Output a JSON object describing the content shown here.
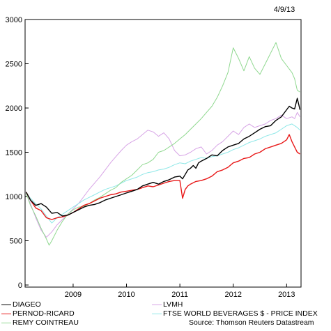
{
  "date_stamp": "4/9/13",
  "source": "Source: Thomson Reuters Datastream",
  "chart_data": {
    "type": "line",
    "ylim": [
      0,
      3000
    ],
    "xlim": [
      2008.1,
      2013.27
    ],
    "y_ticks": [
      0,
      500,
      1000,
      1500,
      2000,
      2500,
      3000
    ],
    "x_ticks": [
      {
        "label": "2009",
        "x": 2009.0
      },
      {
        "label": "2010",
        "x": 2010.0
      },
      {
        "label": "2011",
        "x": 2011.0
      },
      {
        "label": "2012",
        "x": 2012.0
      },
      {
        "label": "2013",
        "x": 2013.0
      }
    ],
    "series": [
      {
        "name": "DIAGEO",
        "color": "#000000",
        "width": 1.4,
        "points": [
          [
            2008.12,
            1050
          ],
          [
            2008.2,
            960
          ],
          [
            2008.3,
            900
          ],
          [
            2008.4,
            920
          ],
          [
            2008.5,
            880
          ],
          [
            2008.6,
            810
          ],
          [
            2008.7,
            820
          ],
          [
            2008.8,
            780
          ],
          [
            2008.9,
            790
          ],
          [
            2009.0,
            820
          ],
          [
            2009.1,
            850
          ],
          [
            2009.2,
            880
          ],
          [
            2009.3,
            900
          ],
          [
            2009.4,
            910
          ],
          [
            2009.5,
            930
          ],
          [
            2009.6,
            960
          ],
          [
            2009.7,
            980
          ],
          [
            2009.8,
            1000
          ],
          [
            2009.9,
            1020
          ],
          [
            2010.0,
            1040
          ],
          [
            2010.1,
            1060
          ],
          [
            2010.2,
            1080
          ],
          [
            2010.3,
            1120
          ],
          [
            2010.4,
            1140
          ],
          [
            2010.5,
            1160
          ],
          [
            2010.6,
            1140
          ],
          [
            2010.7,
            1170
          ],
          [
            2010.8,
            1190
          ],
          [
            2010.9,
            1220
          ],
          [
            2011.0,
            1230
          ],
          [
            2011.05,
            1200
          ],
          [
            2011.1,
            1250
          ],
          [
            2011.15,
            1300
          ],
          [
            2011.2,
            1320
          ],
          [
            2011.25,
            1350
          ],
          [
            2011.3,
            1320
          ],
          [
            2011.35,
            1380
          ],
          [
            2011.4,
            1400
          ],
          [
            2011.5,
            1430
          ],
          [
            2011.6,
            1470
          ],
          [
            2011.7,
            1460
          ],
          [
            2011.8,
            1520
          ],
          [
            2011.9,
            1560
          ],
          [
            2012.0,
            1580
          ],
          [
            2012.1,
            1600
          ],
          [
            2012.2,
            1650
          ],
          [
            2012.3,
            1680
          ],
          [
            2012.4,
            1720
          ],
          [
            2012.5,
            1760
          ],
          [
            2012.6,
            1790
          ],
          [
            2012.7,
            1800
          ],
          [
            2012.8,
            1860
          ],
          [
            2012.9,
            1900
          ],
          [
            2013.0,
            1980
          ],
          [
            2013.05,
            2020
          ],
          [
            2013.1,
            2000
          ],
          [
            2013.15,
            1990
          ],
          [
            2013.2,
            2110
          ],
          [
            2013.25,
            1980
          ]
        ]
      },
      {
        "name": "PERNOD-RICARD",
        "color": "#e81818",
        "width": 1.4,
        "points": [
          [
            2008.12,
            1050
          ],
          [
            2008.2,
            960
          ],
          [
            2008.3,
            870
          ],
          [
            2008.4,
            840
          ],
          [
            2008.5,
            760
          ],
          [
            2008.6,
            740
          ],
          [
            2008.7,
            760
          ],
          [
            2008.8,
            770
          ],
          [
            2008.9,
            790
          ],
          [
            2009.0,
            820
          ],
          [
            2009.1,
            860
          ],
          [
            2009.2,
            900
          ],
          [
            2009.3,
            920
          ],
          [
            2009.4,
            950
          ],
          [
            2009.5,
            980
          ],
          [
            2009.6,
            1000
          ],
          [
            2009.7,
            1020
          ],
          [
            2009.8,
            1030
          ],
          [
            2009.9,
            1050
          ],
          [
            2010.0,
            1060
          ],
          [
            2010.1,
            1070
          ],
          [
            2010.2,
            1080
          ],
          [
            2010.3,
            1100
          ],
          [
            2010.4,
            1120
          ],
          [
            2010.5,
            1110
          ],
          [
            2010.6,
            1130
          ],
          [
            2010.7,
            1150
          ],
          [
            2010.8,
            1170
          ],
          [
            2010.9,
            1180
          ],
          [
            2011.0,
            1180
          ],
          [
            2011.05,
            980
          ],
          [
            2011.1,
            1080
          ],
          [
            2011.15,
            1120
          ],
          [
            2011.2,
            1140
          ],
          [
            2011.3,
            1170
          ],
          [
            2011.4,
            1180
          ],
          [
            2011.5,
            1200
          ],
          [
            2011.6,
            1230
          ],
          [
            2011.7,
            1280
          ],
          [
            2011.8,
            1300
          ],
          [
            2011.9,
            1330
          ],
          [
            2012.0,
            1380
          ],
          [
            2012.1,
            1400
          ],
          [
            2012.2,
            1430
          ],
          [
            2012.3,
            1440
          ],
          [
            2012.4,
            1480
          ],
          [
            2012.5,
            1500
          ],
          [
            2012.6,
            1540
          ],
          [
            2012.7,
            1560
          ],
          [
            2012.8,
            1580
          ],
          [
            2012.9,
            1600
          ],
          [
            2013.0,
            1640
          ],
          [
            2013.05,
            1700
          ],
          [
            2013.1,
            1620
          ],
          [
            2013.15,
            1560
          ],
          [
            2013.2,
            1500
          ],
          [
            2013.25,
            1480
          ]
        ]
      },
      {
        "name": "REMY COINTREAU",
        "color": "#8fd88f",
        "width": 1.0,
        "points": [
          [
            2008.12,
            1040
          ],
          [
            2008.2,
            900
          ],
          [
            2008.3,
            780
          ],
          [
            2008.4,
            640
          ],
          [
            2008.5,
            520
          ],
          [
            2008.55,
            450
          ],
          [
            2008.6,
            500
          ],
          [
            2008.7,
            620
          ],
          [
            2008.8,
            720
          ],
          [
            2008.9,
            800
          ],
          [
            2009.0,
            850
          ],
          [
            2009.1,
            880
          ],
          [
            2009.2,
            890
          ],
          [
            2009.3,
            920
          ],
          [
            2009.4,
            960
          ],
          [
            2009.5,
            990
          ],
          [
            2009.6,
            1030
          ],
          [
            2009.7,
            1070
          ],
          [
            2009.8,
            1100
          ],
          [
            2009.9,
            1160
          ],
          [
            2010.0,
            1200
          ],
          [
            2010.1,
            1240
          ],
          [
            2010.2,
            1300
          ],
          [
            2010.3,
            1360
          ],
          [
            2010.4,
            1380
          ],
          [
            2010.5,
            1420
          ],
          [
            2010.6,
            1500
          ],
          [
            2010.7,
            1520
          ],
          [
            2010.8,
            1560
          ],
          [
            2010.9,
            1600
          ],
          [
            2011.0,
            1650
          ],
          [
            2011.1,
            1700
          ],
          [
            2011.2,
            1760
          ],
          [
            2011.3,
            1820
          ],
          [
            2011.4,
            1880
          ],
          [
            2011.5,
            1950
          ],
          [
            2011.6,
            2020
          ],
          [
            2011.7,
            2120
          ],
          [
            2011.8,
            2250
          ],
          [
            2011.9,
            2400
          ],
          [
            2012.0,
            2680
          ],
          [
            2012.1,
            2560
          ],
          [
            2012.2,
            2420
          ],
          [
            2012.3,
            2580
          ],
          [
            2012.4,
            2450
          ],
          [
            2012.5,
            2380
          ],
          [
            2012.6,
            2500
          ],
          [
            2012.7,
            2620
          ],
          [
            2012.8,
            2740
          ],
          [
            2012.9,
            2560
          ],
          [
            2013.0,
            2480
          ],
          [
            2013.1,
            2400
          ],
          [
            2013.15,
            2330
          ],
          [
            2013.2,
            2200
          ],
          [
            2013.25,
            2180
          ]
        ]
      },
      {
        "name": "LVMH",
        "color": "#d7a4e6",
        "width": 1.0,
        "points": [
          [
            2008.12,
            1040
          ],
          [
            2008.2,
            920
          ],
          [
            2008.3,
            760
          ],
          [
            2008.4,
            620
          ],
          [
            2008.5,
            540
          ],
          [
            2008.6,
            600
          ],
          [
            2008.7,
            680
          ],
          [
            2008.8,
            740
          ],
          [
            2008.9,
            800
          ],
          [
            2009.0,
            860
          ],
          [
            2009.1,
            920
          ],
          [
            2009.2,
            1000
          ],
          [
            2009.3,
            1080
          ],
          [
            2009.4,
            1150
          ],
          [
            2009.5,
            1220
          ],
          [
            2009.6,
            1300
          ],
          [
            2009.7,
            1380
          ],
          [
            2009.8,
            1450
          ],
          [
            2009.9,
            1520
          ],
          [
            2010.0,
            1580
          ],
          [
            2010.1,
            1620
          ],
          [
            2010.2,
            1650
          ],
          [
            2010.3,
            1700
          ],
          [
            2010.4,
            1750
          ],
          [
            2010.5,
            1730
          ],
          [
            2010.6,
            1680
          ],
          [
            2010.7,
            1720
          ],
          [
            2010.8,
            1650
          ],
          [
            2010.9,
            1520
          ],
          [
            2011.0,
            1460
          ],
          [
            2011.1,
            1470
          ],
          [
            2011.2,
            1500
          ],
          [
            2011.3,
            1540
          ],
          [
            2011.4,
            1560
          ],
          [
            2011.5,
            1480
          ],
          [
            2011.6,
            1520
          ],
          [
            2011.7,
            1580
          ],
          [
            2011.8,
            1620
          ],
          [
            2011.9,
            1680
          ],
          [
            2012.0,
            1740
          ],
          [
            2012.1,
            1700
          ],
          [
            2012.2,
            1780
          ],
          [
            2012.3,
            1820
          ],
          [
            2012.4,
            1780
          ],
          [
            2012.5,
            1800
          ],
          [
            2012.6,
            1820
          ],
          [
            2012.7,
            1860
          ],
          [
            2012.8,
            1880
          ],
          [
            2012.9,
            1920
          ],
          [
            2013.0,
            1880
          ],
          [
            2013.1,
            1900
          ],
          [
            2013.15,
            1880
          ],
          [
            2013.2,
            1950
          ],
          [
            2013.25,
            1900
          ]
        ]
      },
      {
        "name": "FTSE WORLD BEVERAGES $ - PRICE INDEX",
        "color": "#8fe8e8",
        "width": 1.0,
        "points": [
          [
            2008.12,
            1040
          ],
          [
            2008.2,
            980
          ],
          [
            2008.3,
            920
          ],
          [
            2008.4,
            860
          ],
          [
            2008.5,
            780
          ],
          [
            2008.6,
            700
          ],
          [
            2008.7,
            760
          ],
          [
            2008.8,
            800
          ],
          [
            2008.9,
            840
          ],
          [
            2009.0,
            880
          ],
          [
            2009.1,
            920
          ],
          [
            2009.2,
            960
          ],
          [
            2009.3,
            990
          ],
          [
            2009.4,
            1020
          ],
          [
            2009.5,
            1050
          ],
          [
            2009.6,
            1080
          ],
          [
            2009.7,
            1100
          ],
          [
            2009.8,
            1120
          ],
          [
            2009.9,
            1150
          ],
          [
            2010.0,
            1180
          ],
          [
            2010.1,
            1200
          ],
          [
            2010.2,
            1220
          ],
          [
            2010.3,
            1250
          ],
          [
            2010.4,
            1270
          ],
          [
            2010.5,
            1280
          ],
          [
            2010.6,
            1300
          ],
          [
            2010.7,
            1310
          ],
          [
            2010.8,
            1330
          ],
          [
            2010.9,
            1360
          ],
          [
            2011.0,
            1380
          ],
          [
            2011.1,
            1370
          ],
          [
            2011.2,
            1400
          ],
          [
            2011.3,
            1420
          ],
          [
            2011.4,
            1440
          ],
          [
            2011.5,
            1430
          ],
          [
            2011.6,
            1450
          ],
          [
            2011.7,
            1460
          ],
          [
            2011.8,
            1480
          ],
          [
            2011.9,
            1500
          ],
          [
            2012.0,
            1530
          ],
          [
            2012.1,
            1550
          ],
          [
            2012.2,
            1580
          ],
          [
            2012.3,
            1610
          ],
          [
            2012.4,
            1630
          ],
          [
            2012.5,
            1650
          ],
          [
            2012.6,
            1680
          ],
          [
            2012.7,
            1700
          ],
          [
            2012.8,
            1720
          ],
          [
            2012.9,
            1760
          ],
          [
            2013.0,
            1800
          ],
          [
            2013.1,
            1820
          ],
          [
            2013.15,
            1800
          ],
          [
            2013.2,
            1780
          ],
          [
            2013.25,
            1750
          ]
        ]
      }
    ]
  }
}
